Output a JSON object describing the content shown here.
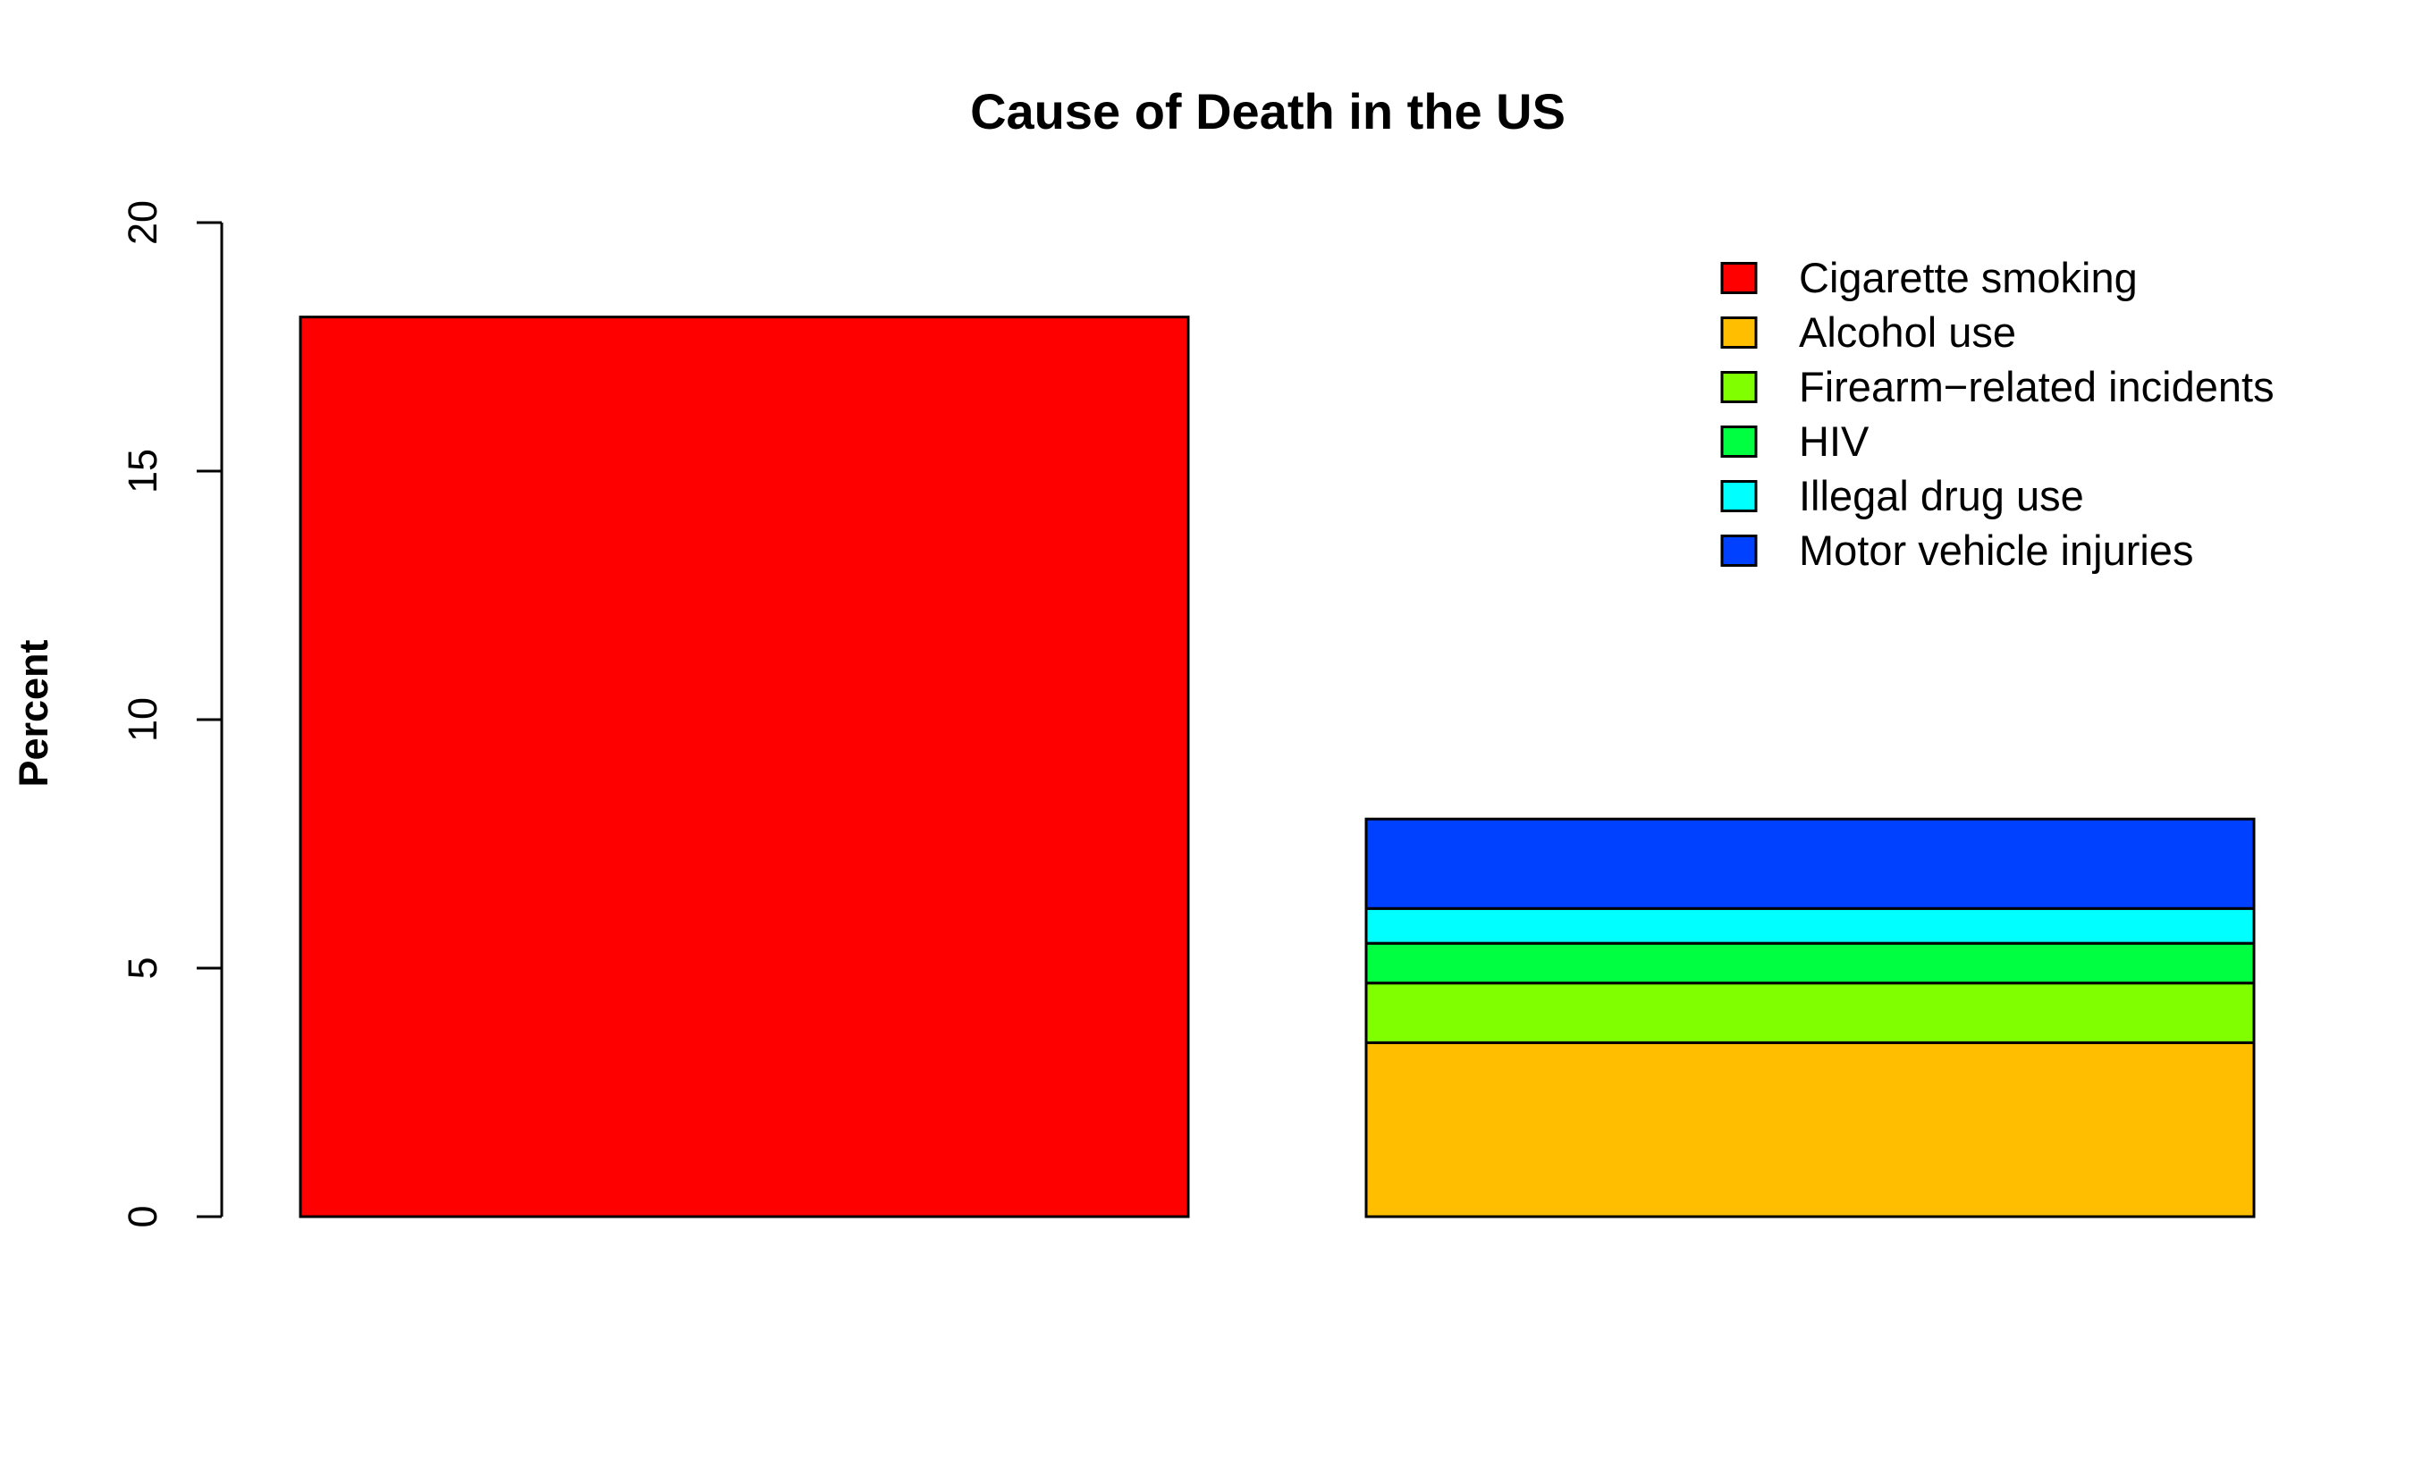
{
  "chart_data": {
    "type": "bar",
    "stacked": true,
    "title": "Cause of Death in the US",
    "xlabel": "",
    "ylabel": "Percent",
    "ylim": [
      0,
      20
    ],
    "yticks": [
      0,
      5,
      10,
      15,
      20
    ],
    "ytick_labels": [
      "0",
      "5",
      "10",
      "15",
      "20"
    ],
    "grid": false,
    "legend_position": "top-right",
    "categories": [
      "",
      ""
    ],
    "series": [
      {
        "name": "Cigarette smoking",
        "color": "#FF0000",
        "values": [
          18.1,
          0
        ]
      },
      {
        "name": "Alcohol use",
        "color": "#FFBF00",
        "values": [
          0,
          3.5
        ]
      },
      {
        "name": "Firearm−related incidents",
        "color": "#80FF00",
        "values": [
          0,
          1.2
        ]
      },
      {
        "name": "HIV",
        "color": "#00FF40",
        "values": [
          0,
          0.8
        ]
      },
      {
        "name": "Illegal drug use",
        "color": "#00FFFF",
        "values": [
          0,
          0.7
        ]
      },
      {
        "name": "Motor vehicle injuries",
        "color": "#0040FF",
        "values": [
          0,
          1.8
        ]
      }
    ]
  }
}
